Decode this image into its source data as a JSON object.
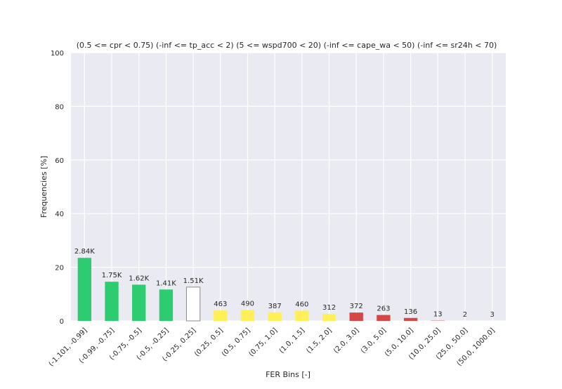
{
  "chart_data": {
    "type": "bar",
    "title": "(0.5 <= cpr < 0.75) (-inf <= tp_acc < 2) (5 <= wspd700 < 20) (-inf <= cape_wa < 50) (-inf <= sr24h < 70)",
    "xlabel": "FER Bins [-]",
    "ylabel": "Frequencies [%]",
    "ylim": [
      0,
      100
    ],
    "yticks": [
      0,
      20,
      40,
      60,
      80,
      100
    ],
    "grid": true,
    "categories": [
      "(-1.101, -0.99]",
      "(-0.99, -0.75]",
      "(-0.75, -0.5]",
      "(-0.5, -0.25]",
      "(-0.25, 0.25]",
      "(0.25, 0.5]",
      "(0.5, 0.75]",
      "(0.75, 1.0]",
      "(1.0, 1.5]",
      "(1.5, 2.0]",
      "(2.0, 3.0]",
      "(3.0, 5.0]",
      "(5.0, 10.0]",
      "(10.0, 25.0]",
      "(25.0, 50.0]",
      "(50.0, 1000.0]"
    ],
    "values": [
      23.5,
      14.6,
      13.5,
      11.7,
      12.6,
      3.9,
      4.1,
      3.2,
      3.8,
      2.6,
      3.1,
      2.2,
      1.1,
      0.1,
      0.0,
      0.0
    ],
    "counts": [
      "2.84K",
      "1.75K",
      "1.62K",
      "1.41K",
      "1.51K",
      "463",
      "490",
      "387",
      "460",
      "312",
      "372",
      "263",
      "136",
      "13",
      "2",
      "3"
    ],
    "bar_colors": [
      "#2ecc71",
      "#2ecc71",
      "#2ecc71",
      "#2ecc71",
      "#ffffff",
      "#fff05a",
      "#fff05a",
      "#fff05a",
      "#fff05a",
      "#fff05a",
      "#d94545",
      "#d94545",
      "#d94545",
      "#d94545",
      "#d94545",
      "#d94545"
    ],
    "background_color": "#eaeaf2"
  }
}
